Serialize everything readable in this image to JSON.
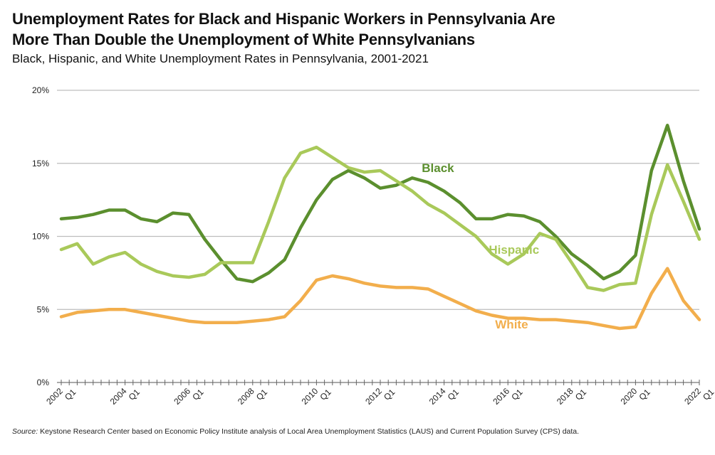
{
  "chart_data": {
    "type": "line",
    "title": "Unemployment Rates for Black and Hispanic Workers in Pennsylvania Are More Than Double the Unemployment of White Pennsylvanians",
    "title_lines": [
      "Unemployment Rates for Black and Hispanic Workers in Pennsylvania Are",
      "More Than Double the Unemployment of White Pennsylvanians"
    ],
    "subtitle": "Black, Hispanic, and White Unemployment Rates in Pennsylvania, 2001-2021",
    "xlabel": "",
    "ylabel": "",
    "ylim": [
      0,
      20
    ],
    "yticks": [
      0,
      5,
      10,
      15,
      20
    ],
    "ytick_labels": [
      "0%",
      "5%",
      "10%",
      "15%",
      "20%"
    ],
    "xlim": [
      2002,
      2022
    ],
    "xticks": [
      2002,
      2004,
      2006,
      2008,
      2010,
      2012,
      2014,
      2016,
      2018,
      2020,
      2022
    ],
    "xtick_labels": [
      {
        "year": "2002",
        "quarter": "Q1"
      },
      {
        "year": "2004",
        "quarter": "Q1"
      },
      {
        "year": "2006",
        "quarter": "Q1"
      },
      {
        "year": "2008",
        "quarter": "Q1"
      },
      {
        "year": "2010",
        "quarter": "Q1"
      },
      {
        "year": "2012",
        "quarter": "Q1"
      },
      {
        "year": "2014",
        "quarter": "Q1"
      },
      {
        "year": "2016",
        "quarter": "Q1"
      },
      {
        "year": "2018",
        "quarter": "Q1"
      },
      {
        "year": "2020",
        "quarter": "Q1"
      },
      {
        "year": "2022",
        "quarter": "Q1"
      }
    ],
    "grid": true,
    "legend": "inline-labels",
    "x": [
      2002,
      2002.5,
      2003,
      2003.5,
      2004,
      2004.5,
      2005,
      2005.5,
      2006,
      2006.5,
      2007,
      2007.5,
      2008,
      2008.5,
      2009,
      2009.5,
      2010,
      2010.5,
      2011,
      2011.5,
      2012,
      2012.5,
      2013,
      2013.5,
      2014,
      2014.5,
      2015,
      2015.5,
      2016,
      2016.5,
      2017,
      2017.5,
      2018,
      2018.5,
      2019,
      2019.5,
      2020,
      2020.5,
      2021,
      2021.5,
      2022
    ],
    "series": [
      {
        "name": "Black",
        "color": "#5b8f2e",
        "values": [
          11.2,
          11.3,
          11.5,
          11.8,
          11.8,
          11.2,
          11.0,
          11.6,
          11.5,
          9.8,
          8.4,
          7.1,
          6.9,
          7.5,
          8.4,
          10.6,
          12.5,
          13.9,
          14.5,
          14.0,
          13.3,
          13.5,
          14.0,
          13.7,
          13.1,
          12.3,
          11.2,
          11.2,
          11.5,
          11.4,
          11.0,
          10.0,
          8.8,
          8.0,
          7.1,
          7.6,
          8.7,
          14.5,
          17.6,
          13.8,
          10.5
        ],
        "label_position": {
          "x": 2013.3,
          "y": 14.4
        }
      },
      {
        "name": "Hispanic",
        "color": "#a9c95a",
        "values": [
          9.1,
          9.5,
          8.1,
          8.6,
          8.9,
          8.1,
          7.6,
          7.3,
          7.2,
          7.4,
          8.2,
          8.2,
          8.2,
          11.0,
          14.0,
          15.7,
          16.1,
          15.4,
          14.7,
          14.4,
          14.5,
          13.8,
          13.1,
          12.2,
          11.6,
          10.8,
          10.0,
          8.8,
          8.1,
          8.8,
          10.2,
          9.8,
          8.2,
          6.5,
          6.3,
          6.7,
          6.8,
          11.5,
          14.9,
          12.4,
          9.8
        ],
        "label_position": {
          "x": 2015.4,
          "y": 8.8
        }
      },
      {
        "name": "White",
        "color": "#f2ae4c",
        "values": [
          4.5,
          4.8,
          4.9,
          5.0,
          5.0,
          4.8,
          4.6,
          4.4,
          4.2,
          4.1,
          4.1,
          4.1,
          4.2,
          4.3,
          4.5,
          5.6,
          7.0,
          7.3,
          7.1,
          6.8,
          6.6,
          6.5,
          6.5,
          6.4,
          5.9,
          5.4,
          4.9,
          4.6,
          4.4,
          4.4,
          4.3,
          4.3,
          4.2,
          4.1,
          3.9,
          3.7,
          3.8,
          6.1,
          7.8,
          5.6,
          4.3
        ],
        "label_position": {
          "x": 2015.6,
          "y": 3.7
        }
      }
    ],
    "source_label": "Source:",
    "source_text": "Keystone Research Center based on Economic Policy Institute analysis of Local Area Unemployment Statistics (LAUS) and Current Population Survey (CPS) data."
  }
}
